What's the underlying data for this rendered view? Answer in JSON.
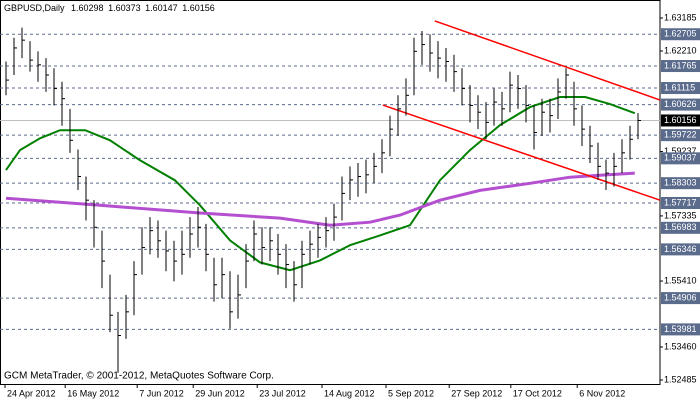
{
  "chart_data": {
    "type": "hlc",
    "title": "GBPUSD,Daily",
    "header_values": [
      1.60298,
      1.60373,
      1.60147,
      1.60156
    ],
    "footer": "GCM MetaTrader, © 2001-2012, MetaQuotes Software Corp.",
    "bar_color": "#000000",
    "close": [
      1.6135,
      1.623,
      1.6253,
      1.6194,
      1.618,
      1.615,
      1.611,
      1.608,
      1.5957,
      1.585,
      1.578,
      1.57,
      1.56,
      1.544,
      1.538,
      1.545,
      1.556,
      1.564,
      1.569,
      1.566,
      1.563,
      1.56,
      1.562,
      1.568,
      1.57,
      1.562,
      1.553,
      1.556,
      1.545,
      1.55,
      1.56,
      1.568,
      1.564,
      1.566,
      1.562,
      1.559,
      1.553,
      1.562,
      1.565,
      1.567,
      1.569,
      1.573,
      1.58,
      1.584,
      1.585,
      1.5855,
      1.588,
      1.592,
      1.599,
      1.605,
      1.609,
      1.622,
      1.624,
      1.6215,
      1.62,
      1.619,
      1.616,
      1.611,
      1.606,
      1.604,
      1.601,
      1.607,
      1.605,
      1.612,
      1.611,
      1.606,
      1.598,
      1.604,
      1.603,
      1.61,
      1.615,
      1.605,
      1.599,
      1.594,
      1.588,
      1.586,
      1.588,
      1.592,
      1.596,
      1.60156
    ],
    "high": [
      1.619,
      1.626,
      1.629,
      1.625,
      1.622,
      1.62,
      1.617,
      1.613,
      1.605,
      1.593,
      1.585,
      1.578,
      1.569,
      1.556,
      1.545,
      1.55,
      1.56,
      1.57,
      1.573,
      1.572,
      1.569,
      1.566,
      1.569,
      1.573,
      1.576,
      1.571,
      1.561,
      1.561,
      1.557,
      1.556,
      1.565,
      1.572,
      1.57,
      1.57,
      1.568,
      1.565,
      1.56,
      1.566,
      1.569,
      1.571,
      1.573,
      1.577,
      1.585,
      1.588,
      1.589,
      1.59,
      1.592,
      1.596,
      1.603,
      1.609,
      1.614,
      1.626,
      1.628,
      1.627,
      1.625,
      1.623,
      1.621,
      1.617,
      1.612,
      1.609,
      1.607,
      1.611,
      1.61,
      1.616,
      1.615,
      1.612,
      1.606,
      1.608,
      1.608,
      1.614,
      1.617,
      1.613,
      1.606,
      1.6,
      1.595,
      1.59,
      1.592,
      1.596,
      1.6,
      1.60373
    ],
    "low": [
      1.609,
      1.615,
      1.62,
      1.616,
      1.613,
      1.61,
      1.606,
      1.6,
      1.592,
      1.581,
      1.572,
      1.564,
      1.552,
      1.539,
      1.527,
      1.537,
      1.544,
      1.556,
      1.562,
      1.561,
      1.557,
      1.554,
      1.556,
      1.561,
      1.564,
      1.557,
      1.548,
      1.549,
      1.54,
      1.543,
      1.552,
      1.56,
      1.559,
      1.56,
      1.556,
      1.552,
      1.548,
      1.552,
      1.559,
      1.561,
      1.564,
      1.566,
      1.572,
      1.578,
      1.579,
      1.58,
      1.583,
      1.586,
      1.591,
      1.597,
      1.603,
      1.609,
      1.618,
      1.616,
      1.614,
      1.613,
      1.61,
      1.606,
      1.601,
      1.599,
      1.596,
      1.6,
      1.6,
      1.604,
      1.605,
      1.601,
      1.593,
      1.597,
      1.598,
      1.602,
      1.608,
      1.6,
      1.594,
      1.589,
      1.584,
      1.581,
      1.582,
      1.586,
      1.59,
      1.596
    ],
    "lines": [
      {
        "color": "#008000",
        "width": 2,
        "x": [
          0,
          1.75,
          4.25,
          6.75,
          9.9,
          13,
          16.75,
          21.1,
          24.25,
          28,
          31.75,
          35.5,
          39.25,
          43,
          46.75,
          50.5,
          54.25,
          58,
          61.75,
          65.5,
          69.25,
          72.4,
          75.5,
          78.6
        ],
        "values": [
          1.5869,
          1.5928,
          1.5963,
          1.5987,
          1.5987,
          1.5957,
          1.5898,
          1.5839,
          1.5765,
          1.5661,
          1.5596,
          1.5573,
          1.5602,
          1.5647,
          1.5676,
          1.5706,
          1.5839,
          1.5928,
          1.6002,
          1.6055,
          1.6085,
          1.6085,
          1.6064,
          1.6037
        ]
      },
      {
        "color": "#b44fd0",
        "width": 3,
        "x": [
          0,
          11.75,
          24.25,
          34.25,
          40.5,
          45.5,
          49.25,
          54.25,
          59.25,
          65.5,
          70.5,
          74.25,
          78.6
        ],
        "values": [
          1.5786,
          1.5765,
          1.5742,
          1.5727,
          1.5706,
          1.5715,
          1.5736,
          1.578,
          1.5809,
          1.583,
          1.5848,
          1.5854,
          1.586
        ]
      },
      {
        "color": "#ff0000",
        "width": 1.5,
        "x": [
          53.6,
          81.75
        ],
        "values": [
          1.631,
          1.6076
        ]
      },
      {
        "color": "#ff0000",
        "width": 1.5,
        "x": [
          47.1,
          81.75
        ],
        "values": [
          1.6061,
          1.578
        ]
      }
    ],
    "xlim": [
      -0.75,
      81.75
    ],
    "ylim": [
      1.52367,
      1.63717
    ],
    "xticks": [
      {
        "value": -0.125,
        "label": "24 Apr 2012"
      },
      {
        "value": 7.4,
        "label": "16 May 2012"
      },
      {
        "value": 16.4,
        "label": "7 Jun 2012"
      },
      {
        "value": 23.4,
        "label": "29 Jun 2012"
      },
      {
        "value": 31.4,
        "label": "23 Jul 2012"
      },
      {
        "value": 39.5,
        "label": "14 Aug 2012"
      },
      {
        "value": 47.5,
        "label": "5 Sep 2012"
      },
      {
        "value": 55.4,
        "label": "27 Sep 2012"
      },
      {
        "value": 63.1,
        "label": "17 Oct 2012"
      },
      {
        "value": 71.4,
        "label": "6 Nov 2012"
      }
    ],
    "yticks": [
      1.63185,
      {
        "value": 1.6221,
        "label": "1.62210"
      },
      1.59237,
      1.57335,
      {
        "value": 1.5541,
        "label": "1.55410"
      },
      {
        "value": 1.5346,
        "label": "1.53460"
      },
      1.52485
    ],
    "levels": [
      1.62705,
      1.61765,
      1.61115,
      1.60626,
      1.59722,
      1.59037,
      1.58303,
      1.57717,
      1.56983,
      1.56346,
      1.54906,
      1.53981
    ],
    "level_color": "#5b6b8c",
    "last_price": 1.60156
  }
}
